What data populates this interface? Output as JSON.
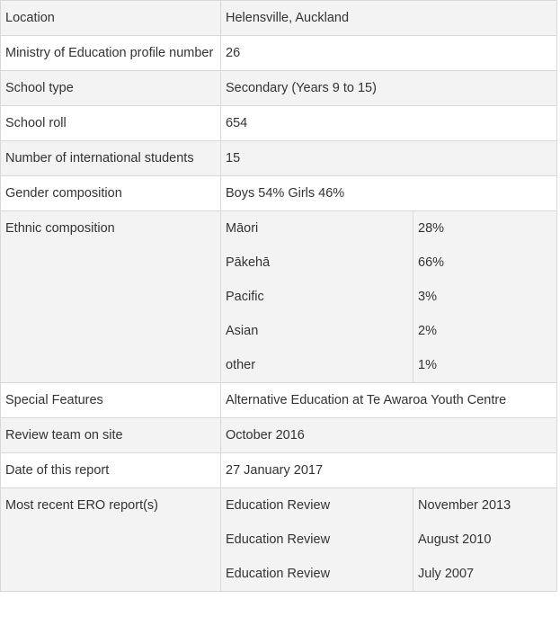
{
  "rows": [
    {
      "label": "Location",
      "value": "Helensville, Auckland"
    },
    {
      "label": "Ministry of Education profile number",
      "value": "26"
    },
    {
      "label": "School type",
      "value": "Secondary (Years 9 to 15)"
    },
    {
      "label": "School roll",
      "value": "654"
    },
    {
      "label": "Number of international students",
      "value": "15"
    },
    {
      "label": "Gender composition",
      "value": "Boys 54% Girls 46%"
    }
  ],
  "ethnic": {
    "label": "Ethnic composition",
    "items": [
      {
        "group": "Māori",
        "percent": "28%"
      },
      {
        "group": "Pākehā",
        "percent": "66%"
      },
      {
        "group": "Pacific",
        "percent": "3%"
      },
      {
        "group": "Asian",
        "percent": "2%"
      },
      {
        "group": "other",
        "percent": "1%"
      }
    ]
  },
  "rows2": [
    {
      "label": "Special Features",
      "value": "Alternative Education at Te Awaroa Youth Centre"
    },
    {
      "label": "Review team on site",
      "value": "October 2016"
    },
    {
      "label": "Date of this report",
      "value": "27 January 2017"
    }
  ],
  "ero": {
    "label": "Most recent ERO report(s)",
    "items": [
      {
        "type": "Education Review",
        "date": "November 2013"
      },
      {
        "type": "Education Review",
        "date": "August 2010"
      },
      {
        "type": "Education Review",
        "date": "July 2007"
      }
    ]
  }
}
